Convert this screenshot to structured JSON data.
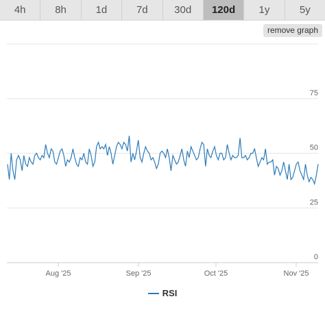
{
  "tabs": [
    {
      "label": "4h"
    },
    {
      "label": "8h"
    },
    {
      "label": "1d"
    },
    {
      "label": "7d"
    },
    {
      "label": "30d"
    },
    {
      "label": "120d"
    },
    {
      "label": "1y"
    },
    {
      "label": "5y"
    }
  ],
  "active_tab": "120d",
  "remove_graph_label": "remove graph",
  "colors": {
    "series": "#2a7ab8",
    "grid": "#e6e6e6",
    "active_tab": "#bdbdbd"
  },
  "chart_data": {
    "type": "line",
    "series": [
      {
        "name": "RSI",
        "values": [
          45,
          38,
          50,
          42,
          38,
          47,
          49,
          47,
          42,
          49,
          45,
          44,
          48,
          46,
          45,
          49,
          50,
          48,
          47,
          49,
          48,
          54,
          50,
          48,
          52,
          51,
          46,
          45,
          48,
          51,
          52,
          49,
          44,
          47,
          46,
          48,
          52,
          48,
          45,
          44,
          48,
          47,
          50,
          46,
          45,
          52,
          49,
          44,
          46,
          53,
          55,
          52,
          53,
          52,
          54,
          49,
          53,
          50,
          45,
          49,
          53,
          55,
          54,
          52,
          55,
          54,
          51,
          58,
          46,
          50,
          47,
          51,
          56,
          48,
          46,
          50,
          53,
          51,
          50,
          47,
          48,
          46,
          43,
          45,
          50,
          51,
          50,
          48,
          52,
          48,
          42,
          49,
          47,
          45,
          46,
          49,
          52,
          47,
          44,
          51,
          48,
          53,
          51,
          49,
          47,
          48,
          52,
          55,
          54,
          44,
          52,
          49,
          48,
          51,
          53,
          49,
          47,
          50,
          50,
          47,
          48,
          54,
          50,
          47,
          49,
          48,
          48,
          49,
          57,
          48,
          48,
          49,
          47,
          48,
          50,
          50,
          52,
          48,
          44,
          46,
          48,
          47,
          52,
          45,
          46,
          46,
          47,
          40,
          44,
          43,
          40,
          42,
          46,
          42,
          38,
          45,
          38,
          39,
          42,
          45,
          46,
          42,
          40,
          38,
          45,
          40,
          37,
          39,
          38,
          36,
          40,
          45
        ]
      }
    ],
    "x_ticks": [
      "Aug '25",
      "Sep '25",
      "Oct '25",
      "Nov '25"
    ],
    "y_ticks": [
      0,
      25,
      50,
      75
    ],
    "ylim": [
      0,
      100
    ],
    "grid": true,
    "legend": "bottom-center"
  }
}
